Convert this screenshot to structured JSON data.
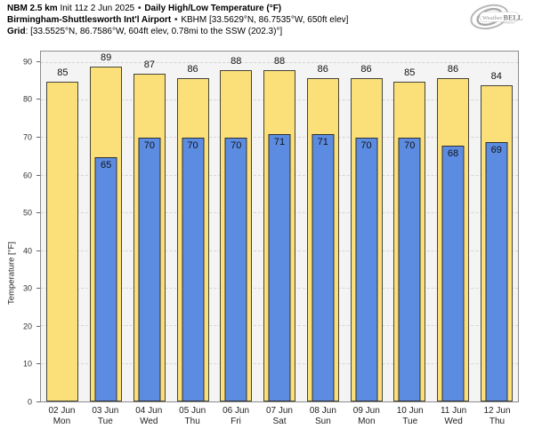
{
  "header": {
    "line1": {
      "model": "NBM 2.5 km",
      "init": "Init 11z 2 Jun 2025",
      "sep": "•",
      "product": "Daily High/Low Temperature (°F)"
    },
    "line2": {
      "station": "Birmingham-Shuttlesworth Int'l Airport",
      "sep": "•",
      "details": "KBHM [33.5629°N, 86.7535°W, 650ft elev]"
    },
    "line3": {
      "label": "Grid",
      "details": ": [33.5525°N, 86.7586°W, 604ft elev, 0.78mi to the SSW (202.3)°]"
    }
  },
  "logo": {
    "brand_left": "Weather",
    "brand_right": "BELL",
    "tagline": "Analytics"
  },
  "chart_data": {
    "type": "bar",
    "title": "Daily High/Low Temperature (°F)",
    "ylabel": "Temperature [°F]",
    "ylim": [
      0,
      93
    ],
    "yticks": [
      0,
      10,
      20,
      30,
      40,
      50,
      60,
      70,
      80,
      90
    ],
    "grid": "horizontal-dashed",
    "legend": "none",
    "categories": [
      {
        "date": "02 Jun",
        "weekday": "Mon"
      },
      {
        "date": "03 Jun",
        "weekday": "Tue"
      },
      {
        "date": "04 Jun",
        "weekday": "Wed"
      },
      {
        "date": "05 Jun",
        "weekday": "Thu"
      },
      {
        "date": "06 Jun",
        "weekday": "Fri"
      },
      {
        "date": "07 Jun",
        "weekday": "Sat"
      },
      {
        "date": "08 Jun",
        "weekday": "Sun"
      },
      {
        "date": "09 Jun",
        "weekday": "Mon"
      },
      {
        "date": "10 Jun",
        "weekday": "Tue"
      },
      {
        "date": "11 Jun",
        "weekday": "Wed"
      },
      {
        "date": "12 Jun",
        "weekday": "Thu"
      }
    ],
    "series": [
      {
        "name": "High",
        "color": "#FBDF79",
        "values": [
          85,
          89,
          87,
          86,
          88,
          88,
          86,
          86,
          85,
          86,
          84
        ]
      },
      {
        "name": "Low",
        "color": "#5C8CE2",
        "values": [
          null,
          65,
          70,
          70,
          70,
          71,
          71,
          70,
          70,
          68,
          69
        ]
      }
    ]
  },
  "colors": {
    "plot_background": "#f4f4f4",
    "plot_border": "#8c8c8c",
    "gridline": "#d6d6d6",
    "bar_border": "#45453b",
    "text": "#111111"
  }
}
